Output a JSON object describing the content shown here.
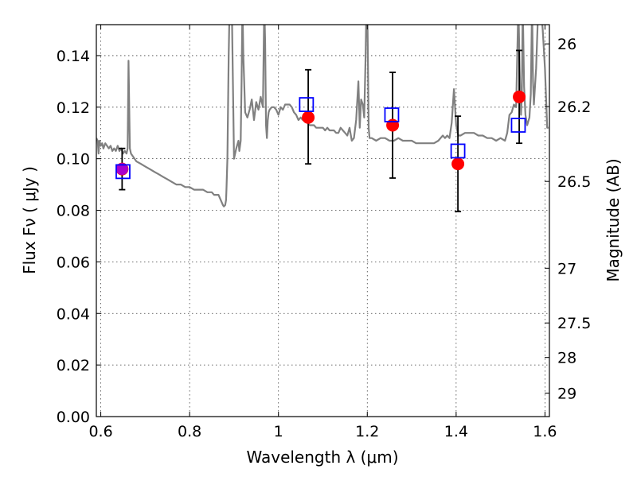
{
  "chart_data": {
    "type": "scatter",
    "xlabel": "Wavelength  λ (μm)",
    "ylabel": "Flux  Fν  ( μJy )",
    "y2label": "Magnitude (AB)",
    "xlim": [
      0.59,
      1.61
    ],
    "ylim": [
      0.0,
      0.152
    ],
    "x_ticks": [
      0.6,
      0.8,
      1.0,
      1.2,
      1.4,
      1.6
    ],
    "x_tick_labels": [
      "0.6",
      "0.8",
      "1",
      "1.2",
      "1.4",
      "1.6"
    ],
    "y_ticks": [
      0.0,
      0.02,
      0.04,
      0.06,
      0.08,
      0.1,
      0.12,
      0.14
    ],
    "y_tick_labels": [
      "0.00",
      "0.02",
      "0.04",
      "0.06",
      "0.08",
      "0.10",
      "0.12",
      "0.14"
    ],
    "mag_ticks": [
      26,
      26.2,
      26.5,
      27,
      27.5,
      28,
      29
    ],
    "mag_tick_labels": [
      "26",
      "26.2",
      "26.5",
      "27",
      "27.5",
      "28",
      "29"
    ],
    "grid": true,
    "series": [
      {
        "kind": "sed_model_line",
        "color": "#808080",
        "x": [
          0.59,
          0.593,
          0.595,
          0.597,
          0.6,
          0.603,
          0.606,
          0.61,
          0.614,
          0.618,
          0.622,
          0.626,
          0.63,
          0.634,
          0.638,
          0.642,
          0.646,
          0.65,
          0.654,
          0.658,
          0.6605,
          0.6625,
          0.664,
          0.6655,
          0.668,
          0.672,
          0.68,
          0.69,
          0.7,
          0.71,
          0.72,
          0.73,
          0.74,
          0.75,
          0.76,
          0.77,
          0.78,
          0.79,
          0.8,
          0.81,
          0.82,
          0.83,
          0.84,
          0.845,
          0.85,
          0.855,
          0.86,
          0.865,
          0.87,
          0.875,
          0.877,
          0.88,
          0.882,
          0.883,
          0.885,
          0.888,
          0.89,
          0.895,
          0.9,
          0.905,
          0.91,
          0.912,
          0.915,
          0.917,
          0.919,
          0.921,
          0.925,
          0.93,
          0.935,
          0.94,
          0.945,
          0.95,
          0.955,
          0.96,
          0.965,
          0.968,
          0.97,
          0.972,
          0.974,
          0.976,
          0.978,
          0.98,
          0.985,
          0.99,
          0.995,
          1.0,
          1.005,
          1.01,
          1.015,
          1.02,
          1.025,
          1.03,
          1.035,
          1.04,
          1.045,
          1.05,
          1.055,
          1.06,
          1.065,
          1.07,
          1.075,
          1.08,
          1.085,
          1.09,
          1.095,
          1.1,
          1.105,
          1.11,
          1.115,
          1.12,
          1.125,
          1.13,
          1.135,
          1.14,
          1.145,
          1.15,
          1.155,
          1.16,
          1.165,
          1.17,
          1.175,
          1.18,
          1.183,
          1.186,
          1.19,
          1.193,
          1.196,
          1.198,
          1.2,
          1.203,
          1.205,
          1.21,
          1.22,
          1.23,
          1.24,
          1.25,
          1.26,
          1.27,
          1.28,
          1.29,
          1.3,
          1.31,
          1.32,
          1.33,
          1.34,
          1.35,
          1.36,
          1.365,
          1.37,
          1.375,
          1.38,
          1.385,
          1.39,
          1.395,
          1.4,
          1.405,
          1.41,
          1.42,
          1.43,
          1.44,
          1.45,
          1.46,
          1.47,
          1.48,
          1.49,
          1.5,
          1.51,
          1.515,
          1.52,
          1.525,
          1.53,
          1.535,
          1.54,
          1.543,
          1.546,
          1.548,
          1.55,
          1.553,
          1.556,
          1.56,
          1.565,
          1.568,
          1.571,
          1.573,
          1.575,
          1.58,
          1.585,
          1.59,
          1.595,
          1.6,
          1.605,
          1.608
        ],
        "y": [
          0.108,
          0.107,
          0.102,
          0.107,
          0.105,
          0.106,
          0.104,
          0.106,
          0.105,
          0.104,
          0.105,
          0.103,
          0.104,
          0.103,
          0.105,
          0.103,
          0.104,
          0.102,
          0.103,
          0.102,
          0.104,
          0.138,
          0.12,
          0.104,
          0.102,
          0.101,
          0.099,
          0.098,
          0.097,
          0.096,
          0.095,
          0.094,
          0.093,
          0.092,
          0.091,
          0.09,
          0.09,
          0.089,
          0.089,
          0.088,
          0.088,
          0.088,
          0.087,
          0.087,
          0.087,
          0.086,
          0.086,
          0.086,
          0.084,
          0.082,
          0.0815,
          0.082,
          0.084,
          0.088,
          0.1,
          0.14,
          0.16,
          0.16,
          0.1,
          0.104,
          0.107,
          0.103,
          0.107,
          0.13,
          0.16,
          0.14,
          0.118,
          0.116,
          0.119,
          0.123,
          0.115,
          0.122,
          0.119,
          0.124,
          0.12,
          0.16,
          0.145,
          0.113,
          0.108,
          0.115,
          0.118,
          0.119,
          0.12,
          0.12,
          0.119,
          0.117,
          0.12,
          0.119,
          0.121,
          0.121,
          0.121,
          0.12,
          0.118,
          0.117,
          0.115,
          0.116,
          0.115,
          0.115,
          0.114,
          0.113,
          0.113,
          0.113,
          0.112,
          0.112,
          0.112,
          0.112,
          0.111,
          0.112,
          0.111,
          0.111,
          0.111,
          0.11,
          0.11,
          0.112,
          0.111,
          0.11,
          0.109,
          0.112,
          0.107,
          0.108,
          0.115,
          0.13,
          0.112,
          0.123,
          0.121,
          0.116,
          0.139,
          0.16,
          0.16,
          0.112,
          0.108,
          0.108,
          0.107,
          0.108,
          0.108,
          0.107,
          0.107,
          0.108,
          0.107,
          0.107,
          0.107,
          0.106,
          0.106,
          0.106,
          0.106,
          0.106,
          0.107,
          0.108,
          0.109,
          0.108,
          0.109,
          0.108,
          0.114,
          0.127,
          0.113,
          0.109,
          0.109,
          0.11,
          0.11,
          0.11,
          0.109,
          0.109,
          0.108,
          0.108,
          0.107,
          0.108,
          0.107,
          0.11,
          0.117,
          0.118,
          0.121,
          0.12,
          0.16,
          0.135,
          0.117,
          0.125,
          0.16,
          0.128,
          0.117,
          0.113,
          0.116,
          0.125,
          0.16,
          0.13,
          0.121,
          0.135,
          0.16,
          0.16,
          0.15,
          0.135,
          0.112,
          0.112
        ]
      },
      {
        "kind": "observed",
        "marker": "circle",
        "color": "#ff0000",
        "x": [
          0.648,
          1.067,
          1.257,
          1.404,
          1.542
        ],
        "y": [
          0.096,
          0.116,
          0.113,
          0.098,
          0.124
        ],
        "yerr_low": [
          0.088,
          0.098,
          0.0925,
          0.0795,
          0.106
        ],
        "yerr_high": [
          0.104,
          0.1345,
          0.1335,
          0.1165,
          0.142
        ]
      },
      {
        "kind": "model",
        "marker": "open-square",
        "color": "#0000ff",
        "x": [
          0.65,
          1.063,
          1.255,
          1.404,
          1.54
        ],
        "y": [
          0.095,
          0.121,
          0.117,
          0.103,
          0.113
        ]
      }
    ],
    "purple_marker": {
      "x": 0.648,
      "y": 0.096,
      "color": "#aa00cc"
    }
  }
}
